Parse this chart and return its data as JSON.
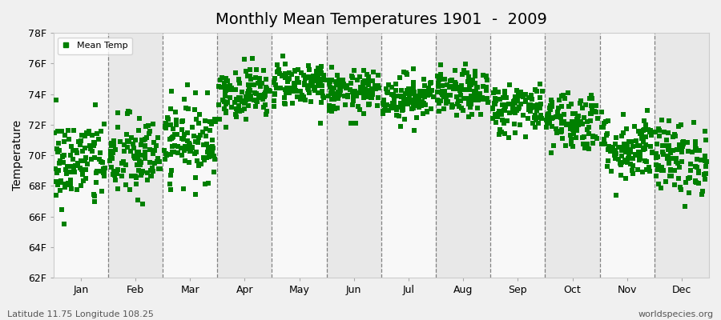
{
  "title": "Monthly Mean Temperatures 1901  -  2009",
  "ylabel": "Temperature",
  "xlabel_months": [
    "Jan",
    "Feb",
    "Mar",
    "Apr",
    "May",
    "Jun",
    "Jul",
    "Aug",
    "Sep",
    "Oct",
    "Nov",
    "Dec"
  ],
  "ylim": [
    62,
    78
  ],
  "yticks": [
    62,
    64,
    66,
    68,
    70,
    72,
    74,
    76,
    78
  ],
  "ytick_labels": [
    "62F",
    "64F",
    "66F",
    "68F",
    "70F",
    "72F",
    "74F",
    "76F",
    "78F"
  ],
  "marker_color": "#008000",
  "marker": "s",
  "marker_size": 4,
  "background_color": "#f0f0f0",
  "band_color_light": "#f8f8f8",
  "band_color_dark": "#e8e8e8",
  "legend_label": "Mean Temp",
  "footer_left": "Latitude 11.75 Longitude 108.25",
  "footer_right": "worldspecies.org",
  "title_fontsize": 14,
  "axis_fontsize": 10,
  "tick_fontsize": 9,
  "n_years": 109,
  "seed": 42,
  "monthly_means": [
    69.5,
    69.8,
    71.0,
    74.1,
    74.7,
    74.1,
    73.8,
    74.0,
    73.1,
    72.3,
    70.5,
    69.8
  ],
  "monthly_stds": [
    1.5,
    1.4,
    1.3,
    0.85,
    0.75,
    0.7,
    0.75,
    0.75,
    0.85,
    1.0,
    1.1,
    1.2
  ]
}
